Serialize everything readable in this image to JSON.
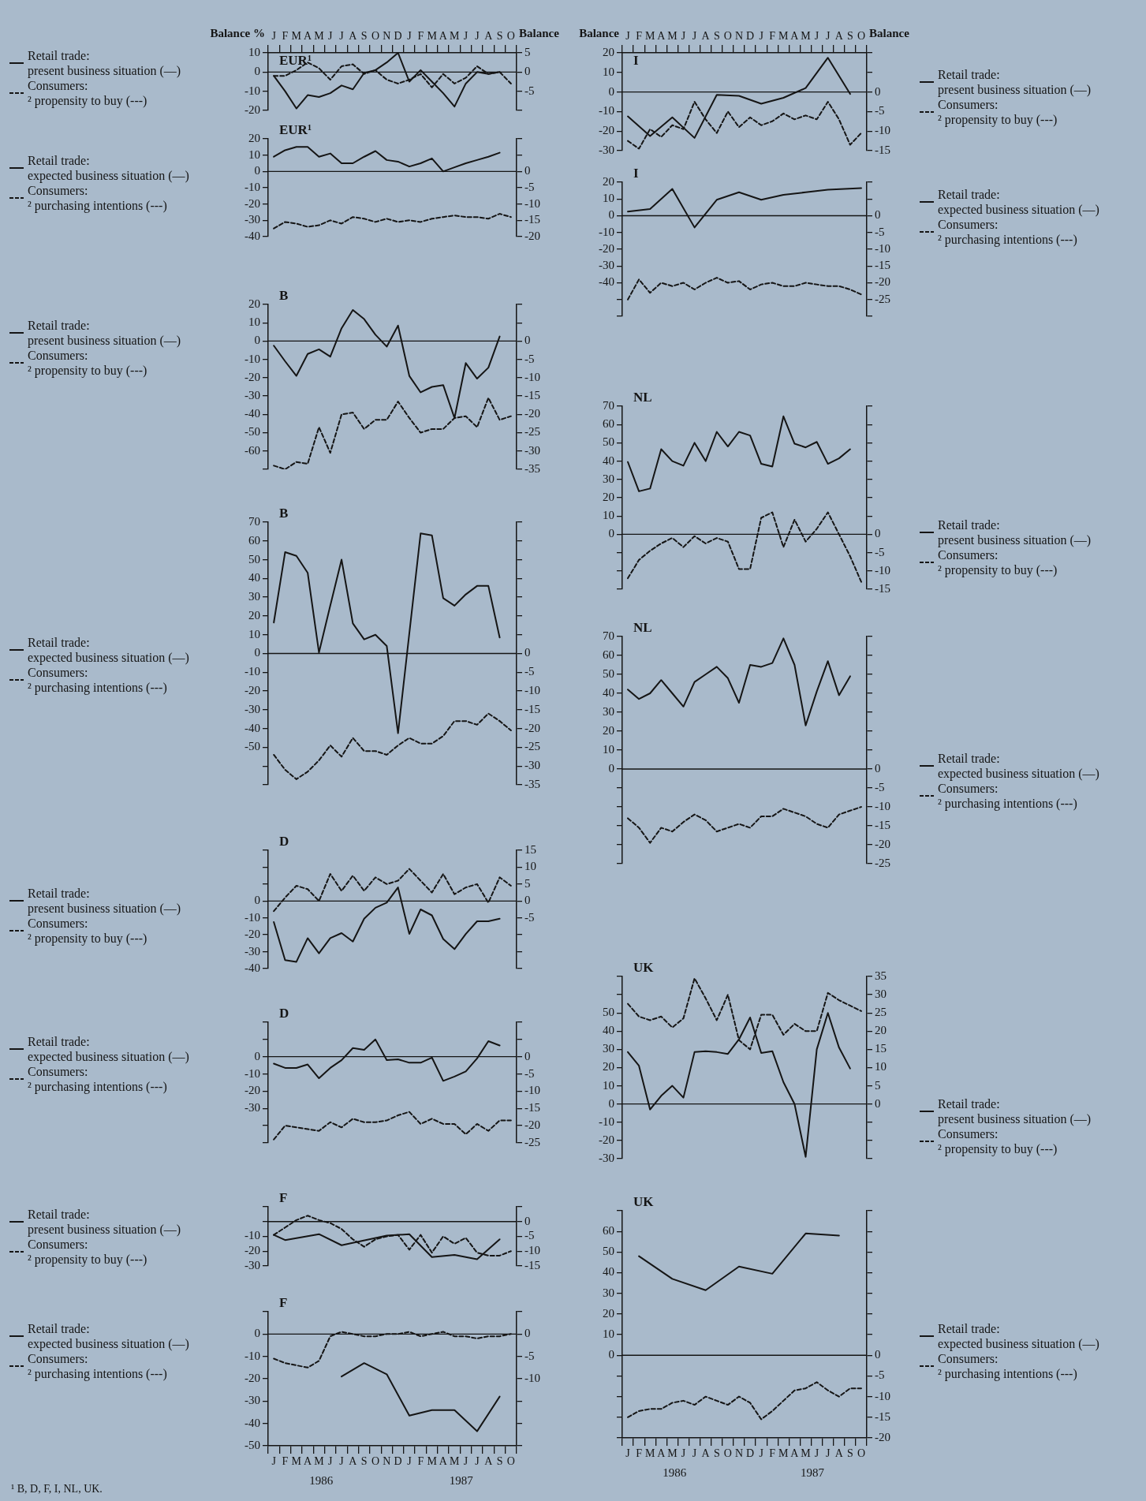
{
  "chart_data": [
    {
      "type": "line",
      "title": "EUR¹",
      "ylabel": "Balance %",
      "y2label": "Balance",
      "legend": "left",
      "categories": [
        "J",
        "F",
        "M",
        "A",
        "M",
        "J",
        "J",
        "A",
        "S",
        "O",
        "N",
        "D",
        "J",
        "F",
        "M",
        "A",
        "M",
        "J",
        "J",
        "A",
        "S",
        "O"
      ],
      "series": [
        {
          "name": "Retail trade: present business situation (—)",
          "color": "#151515",
          "line_style": "solid",
          "values": [
            -2,
            -10,
            -19,
            -12,
            -13,
            -11,
            -7,
            -9,
            -0.5,
            1,
            5,
            10,
            -5,
            1,
            -5,
            -11,
            -18,
            -6,
            0,
            -1,
            0,
            null
          ]
        },
        {
          "name": "Consumers: ² propensity to buy (---)",
          "color": "#151515",
          "line_style": "dashed",
          "axis": "y2",
          "values": [
            -1,
            -1,
            0.5,
            2.5,
            1,
            -2,
            1.5,
            2,
            -0.5,
            0.5,
            -2,
            -3,
            -2,
            -0.5,
            -4,
            -0.5,
            -3,
            -1.5,
            1.5,
            -0.5,
            0,
            -3
          ]
        }
      ],
      "ylim": [
        -20,
        10
      ],
      "yticks": [
        10,
        0,
        -10,
        -20
      ],
      "y2lim": [
        -10,
        5
      ],
      "y2ticks": [
        5,
        0,
        -5,
        {
          "value": -10,
          "label": null
        }
      ],
      "ref_lines": [
        {
          "axis": "y",
          "value": 0
        }
      ]
    },
    {
      "type": "line",
      "title": "EUR¹",
      "tick_labels": "y",
      "legend": "left",
      "categories": [
        null,
        null,
        null,
        null,
        null,
        null,
        null,
        null,
        null,
        null,
        null,
        null,
        null,
        null,
        null,
        null,
        null,
        null,
        null,
        null,
        null,
        null
      ],
      "series": [
        {
          "name": "Retail trade: expected business situation (—)",
          "color": "#151515",
          "line_style": "solid",
          "values": [
            9,
            13,
            15,
            15,
            9,
            11,
            5,
            5,
            9,
            12.5,
            7,
            6,
            3,
            5,
            8,
            0,
            2.5,
            5,
            7,
            9,
            11.5,
            null
          ]
        },
        {
          "name": "Consumers: ² purchasing intentions (---)",
          "color": "#151515",
          "line_style": "dashed",
          "axis": "y2",
          "values": [
            -17.5,
            -15.5,
            -16,
            -17,
            -16.5,
            -15,
            -16,
            -14,
            -14.5,
            -15.5,
            -14.5,
            -15.5,
            -15,
            -15.5,
            -14.5,
            -14,
            -13.5,
            -14,
            -14,
            -14.5,
            -13,
            -14
          ]
        }
      ],
      "ylim": [
        -40,
        20
      ],
      "yticks": [
        20,
        10,
        0,
        -10,
        -20,
        -30,
        -40
      ],
      "y2lim": [
        -20,
        10
      ],
      "y2ticks": [
        {
          "value": 10,
          "label": null
        },
        {
          "value": 5,
          "label": null
        },
        0,
        -5,
        -10,
        -15,
        -20
      ],
      "ref_lines": [
        {
          "axis": "y",
          "value": 0
        }
      ]
    },
    {
      "type": "line",
      "title": "B",
      "tick_labels": "y",
      "legend": "left",
      "categories": [
        null,
        null,
        null,
        null,
        null,
        null,
        null,
        null,
        null,
        null,
        null,
        null,
        null,
        null,
        null,
        null,
        null,
        null,
        null,
        null,
        null,
        null
      ],
      "series": [
        {
          "name": "Retail trade: present business situation (—)",
          "color": "#151515",
          "line_style": "solid",
          "values": [
            -2.5,
            -11,
            -19,
            -7,
            -4.5,
            -8.5,
            7,
            17,
            12,
            3.5,
            -3,
            8.5,
            -19,
            -28,
            -25,
            -24,
            -42,
            -12,
            -20.5,
            -14.5,
            2.5,
            null
          ]
        },
        {
          "name": "Consumers: ² propensity to buy (---)",
          "color": "#151515",
          "line_style": "dashed",
          "axis": "y2",
          "values": [
            -34,
            -35,
            -33,
            -33.5,
            -23.5,
            -30.5,
            -20,
            -19.5,
            -24,
            -21.5,
            -21.5,
            -16.5,
            -21,
            -25,
            -24,
            -24,
            -21,
            -20.5,
            -23.5,
            -15.5,
            -21.5,
            -20.5
          ]
        }
      ],
      "ylim": [
        -70,
        20
      ],
      "yticks": [
        20,
        10,
        0,
        -10,
        -20,
        -30,
        -40,
        -50,
        -60,
        {
          "value": -70,
          "label": null
        }
      ],
      "y2lim": [
        -35,
        10
      ],
      "y2ticks": [
        {
          "value": 10,
          "label": null
        },
        {
          "value": 5,
          "label": null
        },
        0,
        -5,
        -10,
        -15,
        -20,
        -25,
        -30,
        -35
      ],
      "ref_lines": [
        {
          "axis": "y",
          "value": 0
        }
      ]
    },
    {
      "type": "line",
      "title": "B",
      "tick_labels": "y",
      "legend": "left",
      "categories": [
        null,
        null,
        null,
        null,
        null,
        null,
        null,
        null,
        null,
        null,
        null,
        null,
        null,
        null,
        null,
        null,
        null,
        null,
        null,
        null,
        null,
        null
      ],
      "series": [
        {
          "name": "Retail trade: expected business situation (—)",
          "color": "#151515",
          "line_style": "solid",
          "values": [
            16.5,
            54,
            52,
            43,
            0.5,
            25.5,
            50,
            16,
            7.5,
            10,
            4,
            -42.5,
            null,
            64,
            63,
            29.5,
            25.5,
            31.5,
            36,
            36,
            8.5,
            null
          ]
        },
        {
          "name": "Consumers: ² purchasing intentions (---)",
          "color": "#151515",
          "line_style": "dashed",
          "axis": "y2",
          "values": [
            -27,
            -31,
            -33.5,
            -31.5,
            -28.5,
            -24.5,
            -27.5,
            -22.5,
            -26,
            -26,
            -27,
            -24.5,
            -22.5,
            -24,
            -24,
            -22,
            -18,
            -18,
            -19,
            -16,
            -18,
            -20.5
          ]
        }
      ],
      "ylim": [
        -70,
        70
      ],
      "yticks": [
        70,
        60,
        50,
        40,
        30,
        20,
        10,
        0,
        -10,
        -20,
        -30,
        -40,
        -50,
        {
          "value": -60,
          "label": null
        },
        {
          "value": -70,
          "label": null
        }
      ],
      "y2lim": [
        -35,
        35
      ],
      "y2ticks": [
        {
          "value": 35,
          "label": null
        },
        {
          "value": 30,
          "label": null
        },
        {
          "value": 25,
          "label": null
        },
        {
          "value": 20,
          "label": null
        },
        {
          "value": 15,
          "label": null
        },
        {
          "value": 10,
          "label": null
        },
        {
          "value": 5,
          "label": null
        },
        0,
        -5,
        -10,
        -15,
        -20,
        -25,
        -30,
        -35
      ],
      "ref_lines": [
        {
          "axis": "y",
          "value": 0
        }
      ]
    },
    {
      "type": "line",
      "title": "D",
      "tick_labels": "y",
      "legend": "left",
      "categories": [
        null,
        null,
        null,
        null,
        null,
        null,
        null,
        null,
        null,
        null,
        null,
        null,
        null,
        null,
        null,
        null,
        null,
        null,
        null,
        null,
        null,
        null
      ],
      "series": [
        {
          "name": "Retail trade: present business situation (—)",
          "color": "#151515",
          "line_style": "solid",
          "values": [
            -12.5,
            -35,
            -36,
            -22,
            -31,
            -22,
            -19,
            -24,
            -10.5,
            -4,
            -1,
            8,
            -19.5,
            -5,
            -8.5,
            -22.5,
            -28.5,
            -19.5,
            -12,
            -12,
            -10.5,
            null
          ]
        },
        {
          "name": "Consumers: ² propensity to buy (---)",
          "color": "#151515",
          "line_style": "dashed",
          "axis": "y2",
          "values": [
            -3,
            1,
            4.5,
            3.5,
            0,
            8,
            3,
            7.5,
            3,
            7,
            5,
            6,
            9.5,
            6,
            2.5,
            8,
            2,
            4,
            5,
            -0.5,
            7,
            4.5
          ]
        }
      ],
      "ylim": [
        -40,
        30
      ],
      "yticks": [
        {
          "value": 30,
          "label": null
        },
        {
          "value": 20,
          "label": null
        },
        {
          "value": 10,
          "label": null
        },
        0,
        -10,
        -20,
        -30,
        -40
      ],
      "y2lim": [
        -20,
        15
      ],
      "y2ticks": [
        15,
        10,
        5,
        0,
        -5,
        {
          "value": -10,
          "label": null
        },
        {
          "value": -15,
          "label": null
        },
        {
          "value": -20,
          "label": null
        }
      ],
      "ref_lines": [
        {
          "axis": "y",
          "value": 0
        }
      ]
    },
    {
      "type": "line",
      "title": "D",
      "tick_labels": "y",
      "legend": "left",
      "categories": [
        null,
        null,
        null,
        null,
        null,
        null,
        null,
        null,
        null,
        null,
        null,
        null,
        null,
        null,
        null,
        null,
        null,
        null,
        null,
        null,
        null,
        null
      ],
      "series": [
        {
          "name": "Retail trade: expected business situation (—)",
          "color": "#151515",
          "line_style": "solid",
          "values": [
            -4,
            -6.5,
            -6.5,
            -4.5,
            -12.5,
            -6.5,
            -2,
            5,
            4,
            10,
            -2,
            -1.5,
            -3.5,
            -3.5,
            -0.5,
            -14,
            -11.5,
            -8.5,
            -1,
            9,
            6.5,
            null
          ]
        },
        {
          "name": "Consumers: ² purchasing intentions (---)",
          "color": "#151515",
          "line_style": "dashed",
          "axis": "y2",
          "values": [
            -24,
            -20,
            -20.5,
            -21,
            -21.5,
            -19,
            -20.5,
            -18,
            -19,
            -19,
            -18.5,
            -17,
            -16,
            -19.5,
            -18,
            -19.5,
            -19.5,
            -22.5,
            -19.5,
            -21.5,
            -18.5,
            -18.5
          ]
        }
      ],
      "ylim": [
        -50,
        20
      ],
      "yticks": [
        {
          "value": 20,
          "label": null
        },
        {
          "value": 10,
          "label": null
        },
        0,
        -10,
        -20,
        -30,
        {
          "value": -40,
          "label": null
        },
        {
          "value": -50,
          "label": null
        }
      ],
      "y2lim": [
        -25,
        10
      ],
      "y2ticks": [
        {
          "value": 10,
          "label": null
        },
        {
          "value": 5,
          "label": null
        },
        0,
        -5,
        -10,
        -15,
        -20,
        -25
      ],
      "ref_lines": [
        {
          "axis": "y",
          "value": 0
        }
      ]
    },
    {
      "type": "line",
      "title": "F",
      "tick_labels": "y",
      "legend": "left",
      "categories": [
        null,
        null,
        null,
        null,
        null,
        null,
        null,
        null,
        null,
        null,
        null,
        null,
        null,
        null,
        null,
        null,
        null,
        null,
        null,
        null,
        null,
        null
      ],
      "series": [
        {
          "name": "Retail trade: present business situation (—)",
          "color": "#151515",
          "line_style": "solid",
          "values": [
            -9,
            -12.5,
            null,
            null,
            -8.5,
            null,
            -16,
            null,
            null,
            null,
            -9.5,
            null,
            -8.5,
            null,
            -24,
            null,
            -22.5,
            null,
            -25.5,
            null,
            -12,
            null
          ]
        },
        {
          "name": "Consumers: ² propensity to buy (---)",
          "color": "#151515",
          "line_style": "dashed",
          "axis": "y2",
          "values": [
            -4.5,
            -2,
            0.5,
            2,
            0.5,
            -0.5,
            -2.5,
            -6,
            -8.5,
            -6,
            -5,
            -4.5,
            -9.5,
            -4.5,
            -10.5,
            -5,
            -7.5,
            -5.5,
            -10.5,
            -11.5,
            -11.5,
            -10
          ]
        }
      ],
      "ylim": [
        -30,
        10
      ],
      "yticks": [
        {
          "value": 10,
          "label": null
        },
        {
          "value": 0,
          "label": null
        },
        -10,
        -20,
        -30
      ],
      "y2lim": [
        -15,
        5
      ],
      "y2ticks": [
        {
          "value": 5,
          "label": null
        },
        0,
        -5,
        -10,
        -15
      ],
      "ref_lines": [
        {
          "axis": "y",
          "value": 0
        }
      ]
    },
    {
      "type": "line",
      "title": "F",
      "legend": "left",
      "categories": [
        "J",
        "F",
        "M",
        "A",
        "M",
        "J",
        "J",
        "A",
        "S",
        "O",
        "N",
        "D",
        "J",
        "F",
        "M",
        "A",
        "M",
        "J",
        "J",
        "A",
        "S",
        "O"
      ],
      "series": [
        {
          "name": "Retail trade: expected business situation (—)",
          "color": "#151515",
          "line_style": "solid",
          "values": [
            null,
            null,
            null,
            null,
            null,
            null,
            -19,
            null,
            -13,
            null,
            -18,
            null,
            -36.5,
            null,
            -34,
            null,
            -34,
            null,
            -43.5,
            null,
            -28,
            null
          ]
        },
        {
          "name": "Consumers: ² purchasing intentions (---)",
          "color": "#151515",
          "line_style": "dashed",
          "axis": "y2",
          "values": [
            -5.5,
            -6.5,
            -7,
            -7.5,
            -6,
            -0.5,
            0.5,
            0,
            -0.5,
            -0.5,
            0,
            0,
            0.5,
            -0.5,
            0,
            0.5,
            -0.5,
            -0.5,
            -1,
            -0.5,
            -0.5,
            0
          ]
        }
      ],
      "ylim": [
        -50,
        10
      ],
      "yticks": [
        {
          "value": 10,
          "label": null
        },
        0,
        -10,
        -20,
        -30,
        -40,
        -50
      ],
      "y2lim": [
        -25,
        5
      ],
      "y2ticks": [
        {
          "value": 5,
          "label": null
        },
        0,
        -5,
        -10,
        {
          "value": -15,
          "label": null
        },
        {
          "value": -20,
          "label": null
        },
        {
          "value": -25,
          "label": null
        }
      ],
      "ref_lines": [
        {
          "axis": "y",
          "value": 0
        }
      ],
      "annotations": [
        "1986",
        "1987",
        "¹ B, D, F, I, NL, UK."
      ]
    },
    {
      "type": "line",
      "title": "I",
      "ylabel": "Balance",
      "y2label": "Balance",
      "legend": "right",
      "categories": [
        "J",
        "F",
        "M",
        "A",
        "M",
        "J",
        "J",
        "A",
        "S",
        "O",
        "N",
        "D",
        "J",
        "F",
        "M",
        "A",
        "M",
        "J",
        "J",
        "A",
        "S",
        "O"
      ],
      "series": [
        {
          "name": "Retail trade: present business situation (—)",
          "color": "#151515",
          "line_style": "solid",
          "values": [
            -12.5,
            null,
            -22.5,
            null,
            -13,
            null,
            -23.5,
            null,
            -1.5,
            null,
            -2,
            null,
            -6,
            null,
            -3,
            null,
            2,
            null,
            17.5,
            null,
            -1,
            null
          ]
        },
        {
          "name": "Consumers: ² propensity to buy (---)",
          "color": "#151515",
          "line_style": "dashed",
          "axis": "y2",
          "values": [
            -12.5,
            -14.5,
            -9.5,
            -11.5,
            -8.5,
            -9.5,
            -2.5,
            -7,
            -10.5,
            -5,
            -9,
            -6.5,
            -8.5,
            -7.5,
            -5.5,
            -7,
            -6,
            -7,
            -2.5,
            -7,
            -13.5,
            -10.5
          ]
        }
      ],
      "ylim": [
        -30,
        20
      ],
      "yticks": [
        20,
        10,
        0,
        -10,
        -20,
        -30
      ],
      "y2lim": [
        -15,
        10
      ],
      "y2ticks": [
        {
          "value": 10,
          "label": null
        },
        {
          "value": 5,
          "label": null
        },
        0,
        -5,
        -10,
        -15
      ],
      "ref_lines": [
        {
          "axis": "y",
          "value": 0
        }
      ]
    },
    {
      "type": "line",
      "title": "I",
      "tick_labels": "y",
      "legend": "right",
      "categories": [
        null,
        null,
        null,
        null,
        null,
        null,
        null,
        null,
        null,
        null,
        null,
        null,
        null,
        null,
        null,
        null,
        null,
        null,
        null,
        null,
        null,
        null
      ],
      "series": [
        {
          "name": "Retail trade: expected business situation (—)",
          "color": "#151515",
          "line_style": "solid",
          "values": [
            2.5,
            null,
            4,
            null,
            16,
            null,
            -7,
            null,
            9.5,
            null,
            14,
            null,
            9.5,
            null,
            12.5,
            null,
            14,
            null,
            15.5,
            null,
            null,
            16.5
          ]
        },
        {
          "name": "Consumers: ² purchasing intentions (---)",
          "color": "#151515",
          "line_style": "dashed",
          "axis": "y2",
          "values": [
            -25,
            -19,
            -23,
            -20,
            -21,
            -20,
            -22,
            -20,
            -18.5,
            -20,
            -19.5,
            -22,
            -20.5,
            -20,
            -21,
            -21,
            -20,
            -20.5,
            -21,
            -21,
            -22,
            -23.5
          ]
        }
      ],
      "ylim": [
        -60,
        20
      ],
      "yticks": [
        20,
        10,
        0,
        -10,
        -20,
        -30,
        -40,
        {
          "value": -50,
          "label": null
        },
        {
          "value": -60,
          "label": null
        }
      ],
      "y2lim": [
        -30,
        10
      ],
      "y2ticks": [
        {
          "value": 10,
          "label": null
        },
        {
          "value": 5,
          "label": null
        },
        0,
        -5,
        -10,
        -15,
        -20,
        -25,
        {
          "value": -30,
          "label": null
        }
      ],
      "ref_lines": [
        {
          "axis": "y",
          "value": 0
        }
      ]
    },
    {
      "type": "line",
      "title": "NL",
      "tick_labels": "y",
      "legend": "right",
      "categories": [
        null,
        null,
        null,
        null,
        null,
        null,
        null,
        null,
        null,
        null,
        null,
        null,
        null,
        null,
        null,
        null,
        null,
        null,
        null,
        null,
        null,
        null
      ],
      "series": [
        {
          "name": "Retail trade: present business situation (—)",
          "color": "#151515",
          "line_style": "solid",
          "values": [
            39.5,
            23.5,
            25,
            46.5,
            40,
            37.5,
            50,
            40,
            56,
            48,
            56,
            54,
            38.5,
            37,
            64.5,
            49.5,
            47.5,
            50.5,
            38.5,
            41.5,
            46.5,
            null
          ]
        },
        {
          "name": "Consumers: ² propensity to buy (---)",
          "color": "#151515",
          "line_style": "dashed",
          "axis": "y2",
          "values": [
            -12,
            -7,
            -4.5,
            -2.5,
            -1,
            -3.5,
            -0.5,
            -2.5,
            -1,
            -2,
            -9.5,
            -9.5,
            4.5,
            6,
            -3.5,
            4,
            -2,
            1.5,
            6,
            0,
            -6,
            -13
          ]
        }
      ],
      "ylim": [
        -30,
        70
      ],
      "yticks": [
        70,
        60,
        50,
        40,
        30,
        20,
        10,
        0,
        {
          "value": -10,
          "label": null
        },
        {
          "value": -20,
          "label": null
        },
        {
          "value": -30,
          "label": null
        }
      ],
      "y2lim": [
        -15,
        35
      ],
      "y2ticks": [
        {
          "value": 35,
          "label": null
        },
        {
          "value": 30,
          "label": null
        },
        {
          "value": 25,
          "label": null
        },
        {
          "value": 20,
          "label": null
        },
        {
          "value": 15,
          "label": null
        },
        {
          "value": 10,
          "label": null
        },
        {
          "value": 5,
          "label": null
        },
        0,
        -5,
        -10,
        -15
      ],
      "ref_lines": [
        {
          "axis": "y",
          "value": 0
        }
      ]
    },
    {
      "type": "line",
      "title": "NL",
      "tick_labels": "y",
      "legend": "right",
      "categories": [
        null,
        null,
        null,
        null,
        null,
        null,
        null,
        null,
        null,
        null,
        null,
        null,
        null,
        null,
        null,
        null,
        null,
        null,
        null,
        null,
        null,
        null
      ],
      "series": [
        {
          "name": "Retail trade: expected business situation (—)",
          "color": "#151515",
          "line_style": "solid",
          "values": [
            42,
            37,
            40,
            47,
            40,
            33,
            46,
            50,
            54,
            48,
            35,
            55,
            54,
            56,
            69,
            55,
            23,
            41,
            57,
            39,
            49,
            null
          ]
        },
        {
          "name": "Consumers: ² purchasing intentions (---)",
          "color": "#151515",
          "line_style": "dashed",
          "axis": "y2",
          "values": [
            -13,
            -15.5,
            -19.5,
            -15.5,
            -16.5,
            -14,
            -12,
            -13.5,
            -16.5,
            -15.5,
            -14.5,
            -15.5,
            -12.5,
            -12.5,
            -10.5,
            -11.5,
            -12.5,
            -14.5,
            -15.5,
            -12,
            -11,
            -10
          ]
        }
      ],
      "ylim": [
        -50,
        70
      ],
      "yticks": [
        70,
        60,
        50,
        40,
        30,
        20,
        10,
        0,
        {
          "value": -10,
          "label": null
        },
        {
          "value": -20,
          "label": null
        },
        {
          "value": -30,
          "label": null
        },
        {
          "value": -40,
          "label": null
        },
        {
          "value": -50,
          "label": null
        }
      ],
      "y2lim": [
        -25,
        35
      ],
      "y2ticks": [
        {
          "value": 35,
          "label": null
        },
        {
          "value": 30,
          "label": null
        },
        {
          "value": 25,
          "label": null
        },
        {
          "value": 20,
          "label": null
        },
        {
          "value": 15,
          "label": null
        },
        {
          "value": 10,
          "label": null
        },
        {
          "value": 5,
          "label": null
        },
        0,
        -5,
        -10,
        -15,
        -20,
        -25
      ],
      "ref_lines": [
        {
          "axis": "y",
          "value": 0
        }
      ]
    },
    {
      "type": "line",
      "title": "UK",
      "tick_labels": "y",
      "legend": "right",
      "categories": [
        null,
        null,
        null,
        null,
        null,
        null,
        null,
        null,
        null,
        null,
        null,
        null,
        null,
        null,
        null,
        null,
        null,
        null,
        null,
        null,
        null,
        null
      ],
      "series": [
        {
          "name": "Retail trade: present business situation (—)",
          "color": "#151515",
          "line_style": "solid",
          "values": [
            28.5,
            21,
            -3,
            4.5,
            10,
            3.5,
            28.5,
            29,
            28.5,
            27.5,
            35.5,
            47.5,
            28,
            29,
            12,
            0,
            -29,
            30,
            50,
            31,
            19.5,
            null
          ]
        },
        {
          "name": "Consumers: ² propensity to buy (---)",
          "color": "#151515",
          "line_style": "dashed",
          "axis": "y2",
          "values": [
            27.5,
            24,
            23,
            24,
            21,
            23.5,
            34.5,
            29,
            23,
            30,
            17.5,
            15,
            24.5,
            24.5,
            19,
            22,
            20,
            20,
            30.5,
            28.5,
            27,
            25.5
          ]
        }
      ],
      "ylim": [
        -30,
        70
      ],
      "yticks": [
        {
          "value": 70,
          "label": null
        },
        {
          "value": 60,
          "label": null
        },
        50,
        40,
        30,
        20,
        10,
        0,
        -10,
        -20,
        -30
      ],
      "y2lim": [
        -15,
        35
      ],
      "y2ticks": [
        35,
        30,
        25,
        20,
        15,
        10,
        5,
        0,
        {
          "value": -5,
          "label": null
        },
        {
          "value": -10,
          "label": null
        },
        {
          "value": -15,
          "label": null
        }
      ],
      "ref_lines": [
        {
          "axis": "y",
          "value": 0
        }
      ]
    },
    {
      "type": "line",
      "title": "UK",
      "legend": "right",
      "categories": [
        "J",
        "F",
        "M",
        "A",
        "M",
        "J",
        "J",
        "A",
        "S",
        "O",
        "N",
        "D",
        "J",
        "F",
        "M",
        "A",
        "M",
        "J",
        "J",
        "A",
        "S",
        "O"
      ],
      "series": [
        {
          "name": "Retail trade: expected business situation (—)",
          "color": "#151515",
          "line_style": "solid",
          "values": [
            null,
            48,
            null,
            null,
            37,
            null,
            null,
            31.5,
            null,
            null,
            43,
            null,
            null,
            39.5,
            null,
            null,
            59,
            null,
            null,
            58,
            null,
            null
          ]
        },
        {
          "name": "Consumers: ² purchasing intentions (---)",
          "color": "#151515",
          "line_style": "dashed",
          "axis": "y2",
          "values": [
            -15,
            -13.5,
            -13,
            -13,
            -11.5,
            -11,
            -12,
            -10,
            -11,
            -12,
            -10,
            -11.5,
            -15.5,
            -13.5,
            -11,
            -8.5,
            -8,
            -6.5,
            -8.5,
            -10,
            -8,
            -8
          ]
        }
      ],
      "ylim": [
        -40,
        70
      ],
      "yticks": [
        {
          "value": 70,
          "label": null
        },
        60,
        50,
        40,
        30,
        20,
        10,
        0,
        {
          "value": -10,
          "label": null
        },
        {
          "value": -20,
          "label": null
        },
        {
          "value": -30,
          "label": null
        },
        {
          "value": -40,
          "label": null
        }
      ],
      "y2lim": [
        -20,
        35
      ],
      "y2ticks": [
        {
          "value": 35,
          "label": null
        },
        {
          "value": 30,
          "label": null
        },
        {
          "value": 25,
          "label": null
        },
        {
          "value": 20,
          "label": null
        },
        {
          "value": 15,
          "label": null
        },
        {
          "value": 10,
          "label": null
        },
        {
          "value": 5,
          "label": null
        },
        0,
        -5,
        -10,
        -15,
        -20
      ],
      "ref_lines": [
        {
          "axis": "y",
          "value": 0
        }
      ],
      "annotations": [
        "1986",
        "1987"
      ]
    }
  ]
}
